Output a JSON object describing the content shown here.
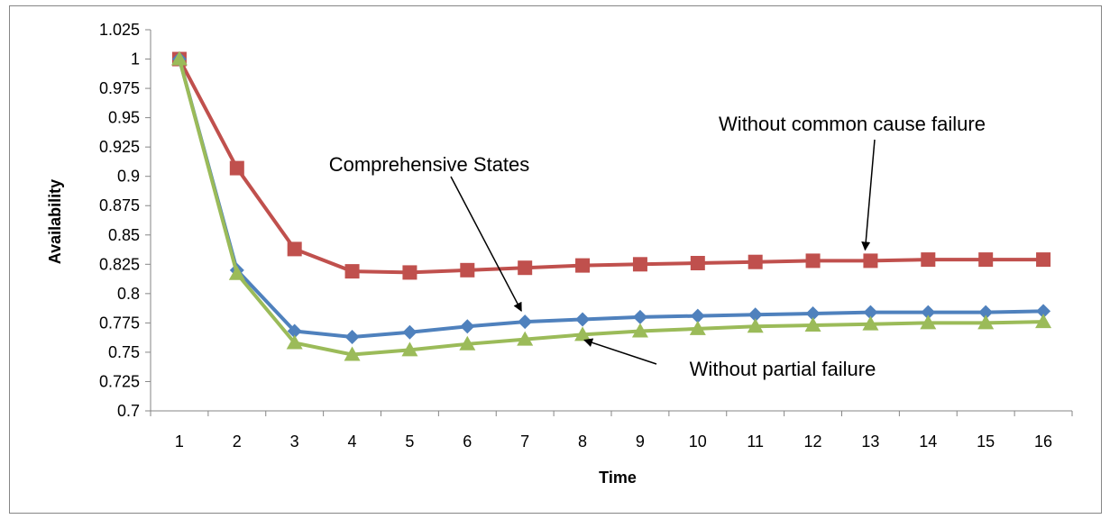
{
  "chart_data": {
    "type": "line",
    "title": "",
    "xlabel": "Time",
    "ylabel": "Availability",
    "x": [
      1,
      2,
      3,
      4,
      5,
      6,
      7,
      8,
      9,
      10,
      11,
      12,
      13,
      14,
      15,
      16
    ],
    "ylim": [
      0.7,
      1.025
    ],
    "ytick_step": 0.025,
    "yticks": [
      "0.7",
      "0.725",
      "0.75",
      "0.775",
      "0.8",
      "0.825",
      "0.85",
      "0.875",
      "0.9",
      "0.925",
      "0.95",
      "0.975",
      "1",
      "1.025"
    ],
    "grid": false,
    "legend": "none",
    "series": [
      {
        "key": "common_cause",
        "color": "#C0504D",
        "marker": "square",
        "values": [
          1.0,
          0.907,
          0.838,
          0.819,
          0.818,
          0.82,
          0.822,
          0.824,
          0.825,
          0.826,
          0.827,
          0.828,
          0.828,
          0.829,
          0.829,
          0.829
        ]
      },
      {
        "key": "comprehensive",
        "color": "#4F81BD",
        "marker": "diamond",
        "values": [
          1.0,
          0.82,
          0.768,
          0.763,
          0.767,
          0.772,
          0.776,
          0.778,
          0.78,
          0.781,
          0.782,
          0.783,
          0.784,
          0.784,
          0.784,
          0.785
        ]
      },
      {
        "key": "partial",
        "color": "#9BBB59",
        "marker": "triangle",
        "values": [
          1.0,
          0.817,
          0.758,
          0.748,
          0.752,
          0.757,
          0.761,
          0.765,
          0.768,
          0.77,
          0.772,
          0.773,
          0.774,
          0.775,
          0.775,
          0.776
        ]
      }
    ],
    "annotations": [
      {
        "text": "Without common cause failure",
        "points_to": "common_cause",
        "at_x": 13
      },
      {
        "text": "Comprehensive States",
        "points_to": "comprehensive",
        "at_x": 7
      },
      {
        "text": "Without partial failure",
        "points_to": "partial",
        "at_x": 8
      }
    ]
  }
}
